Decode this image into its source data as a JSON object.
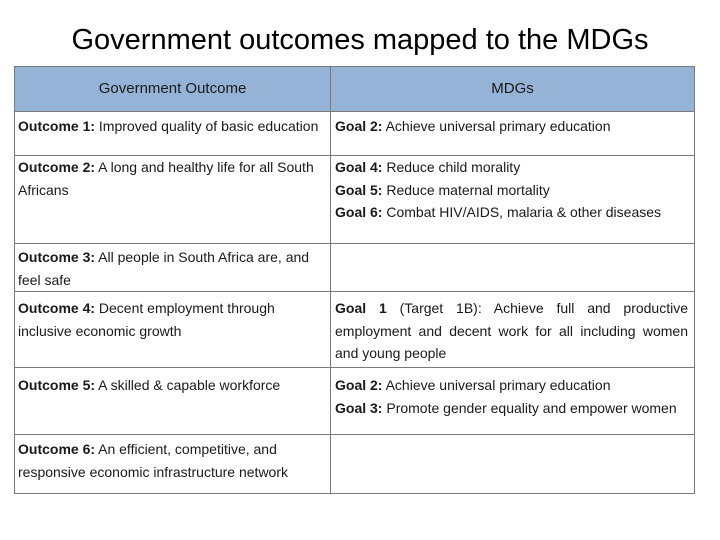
{
  "title": "Government outcomes mapped to the MDGs",
  "table": {
    "headers": [
      "Government Outcome",
      "MDGs"
    ],
    "rows": [
      {
        "outcome": {
          "label": "Outcome 1:",
          "text": " Improved quality of basic education"
        },
        "goals": [
          {
            "label": "Goal 2:",
            "text": " Achieve universal primary education"
          }
        ]
      },
      {
        "outcome": {
          "label": "Outcome 2:",
          "text": " A long and healthy life for all South Africans"
        },
        "goals": [
          {
            "label": "Goal 4:",
            "text": " Reduce child morality"
          },
          {
            "label": "Goal 5:",
            "text": " Reduce maternal mortality"
          },
          {
            "label": "Goal 6:",
            "text": " Combat HIV/AIDS, malaria & other diseases"
          }
        ]
      },
      {
        "outcome": {
          "label": "Outcome 3:",
          "text": " All people in South Africa are, and feel safe"
        },
        "goals": []
      },
      {
        "outcome": {
          "label": "Outcome 4:",
          "text": " Decent employment through inclusive economic growth"
        },
        "goals": [
          {
            "label": "Goal 1",
            "text": " (Target 1B): Achieve full and productive employment and decent work for all including women and young people"
          }
        ]
      },
      {
        "outcome": {
          "label": "Outcome 5:",
          "text": " A skilled & capable workforce"
        },
        "goals": [
          {
            "label": "Goal 2:",
            "text": " Achieve universal primary education"
          },
          {
            "label": "Goal 3:",
            "text": " Promote gender equality and empower women"
          }
        ]
      },
      {
        "outcome": {
          "label": "Outcome 6:",
          "text": " An efficient, competitive, and responsive economic infrastructure network"
        },
        "goals": []
      }
    ]
  }
}
